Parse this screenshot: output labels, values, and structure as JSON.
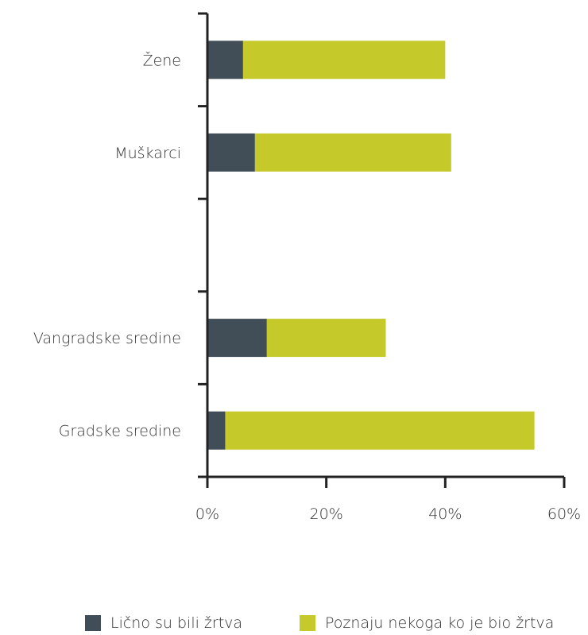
{
  "chart_data": {
    "type": "bar",
    "orientation": "horizontal",
    "stacked": true,
    "categories": [
      "Žene",
      "Muškarci",
      "",
      "Vangradske sredine",
      "Gradske sredine"
    ],
    "series": [
      {
        "name": "Lično su bili žrtva",
        "color": "#414e57",
        "values": [
          6,
          8,
          null,
          10,
          3
        ]
      },
      {
        "name": "Poznaju nekoga ko je bio žrtva",
        "color": "#c5c92a",
        "values": [
          34,
          33,
          null,
          20,
          52
        ]
      }
    ],
    "xlim": [
      0,
      60
    ],
    "xticks": [
      0,
      20,
      40,
      60
    ],
    "xtick_labels": [
      "0%",
      "20%",
      "40%",
      "60%"
    ],
    "legend_position": "bottom",
    "grid": false
  }
}
